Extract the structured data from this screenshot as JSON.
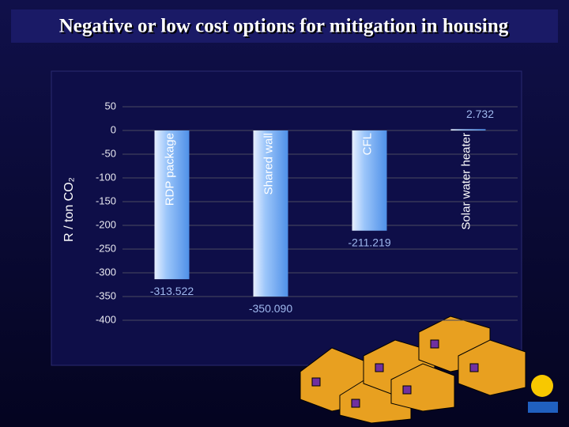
{
  "chart_data": {
    "type": "bar",
    "title": "Negative or low cost options for mitigation in housing",
    "y_label": "R / ton CO₂",
    "categories": [
      "RDP package",
      "Shared wall",
      "CFL",
      "Solar water heater"
    ],
    "values": [
      -313.522,
      -350.09,
      -211.219,
      2.732
    ],
    "value_labels": [
      "-313.522",
      "-350.090",
      "-211.219",
      "2.732"
    ],
    "color": "#6aaaf5",
    "ylim": [
      -400,
      50
    ],
    "yticks": [
      -400,
      -350,
      -300,
      -250,
      -200,
      -150,
      -100,
      -50,
      0,
      50
    ],
    "grid": true
  }
}
